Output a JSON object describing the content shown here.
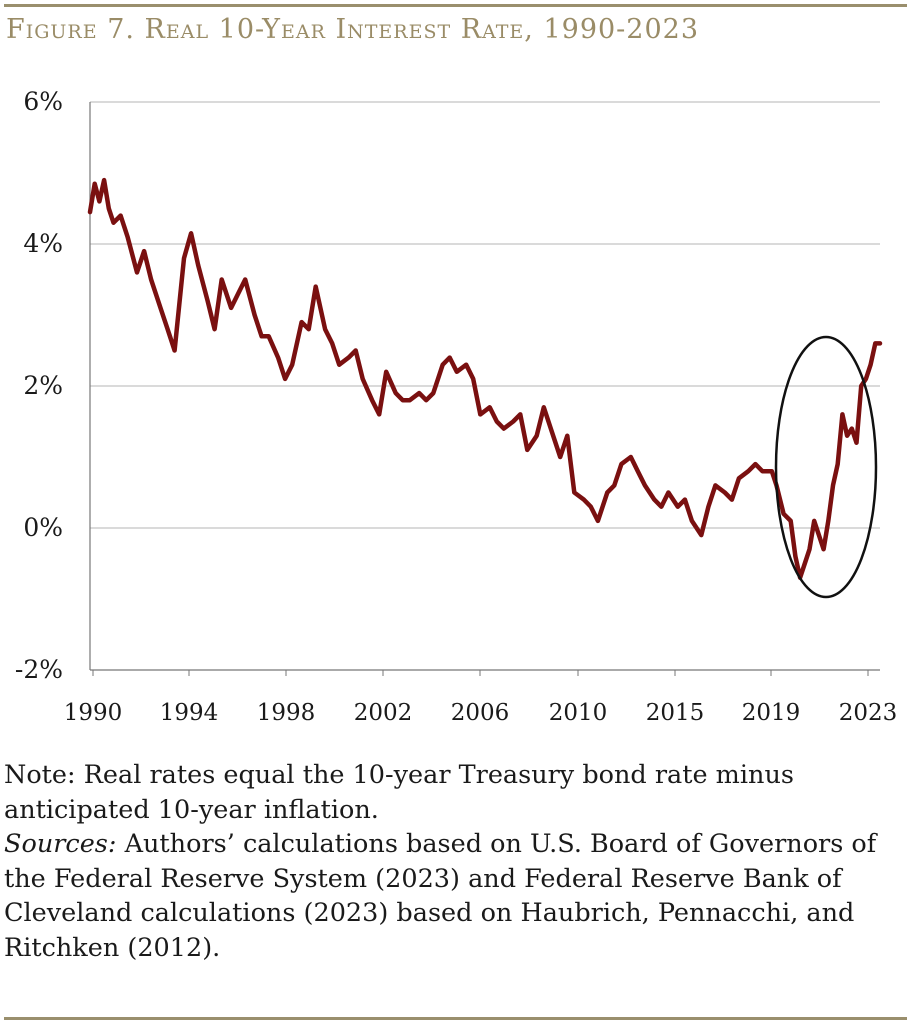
{
  "figure": {
    "title": "Figure 7. Real 10-Year Interest Rate, 1990-2023"
  },
  "chart_data": {
    "type": "line",
    "title": "Figure 7. Real 10-Year Interest Rate, 1990-2023",
    "xlabel": "",
    "ylabel": "",
    "ylim": [
      -2,
      6
    ],
    "yticks": [
      "-2%",
      "0%",
      "2%",
      "4%",
      "6%"
    ],
    "xticks": [
      "1990",
      "1994",
      "1998",
      "2002",
      "2006",
      "2010",
      "2015",
      "2019",
      "2023"
    ],
    "grid": "horizontal",
    "line_color": "#7a1010",
    "annotation": "ellipse highlighting 2019-2023 dip below 0% and rebound",
    "series": [
      {
        "x": [
          1990.0,
          1990.2,
          1990.4,
          1990.6,
          1990.8,
          1991.0,
          1991.3,
          1991.6,
          1992.0,
          1992.3,
          1992.6,
          1993.0,
          1993.3,
          1993.6,
          1994.0,
          1994.3,
          1994.6,
          1995.0,
          1995.3,
          1995.6,
          1996.0,
          1996.3,
          1996.6,
          1997.0,
          1997.3,
          1997.6,
          1998.0,
          1998.3,
          1998.6,
          1999.0,
          1999.3,
          1999.6,
          2000.0,
          2000.3,
          2000.6,
          2001.0,
          2001.3,
          2001.6,
          2002.0,
          2002.3,
          2002.6,
          2003.0,
          2003.3,
          2003.6,
          2004.0,
          2004.3,
          2004.6,
          2005.0,
          2005.3,
          2005.6,
          2006.0,
          2006.3,
          2006.6,
          2007.0,
          2007.3,
          2007.6,
          2008.0,
          2008.3,
          2008.6,
          2009.0,
          2009.3,
          2009.6,
          2010.0,
          2010.3,
          2010.6,
          2011.0,
          2011.3,
          2011.6,
          2012.0,
          2012.3,
          2012.6,
          2013.0,
          2013.3,
          2013.6,
          2014.0,
          2014.3,
          2014.6,
          2015.0,
          2015.3,
          2015.6,
          2016.0,
          2016.3,
          2016.6,
          2017.0,
          2017.3,
          2017.6,
          2018.0,
          2018.3,
          2018.6,
          2019.0,
          2019.2,
          2019.5,
          2019.8,
          2020.0,
          2020.2,
          2020.4,
          2020.6,
          2020.8,
          2021.0,
          2021.2,
          2021.4,
          2021.6,
          2021.8,
          2022.0,
          2022.2,
          2022.4,
          2022.6,
          2022.8,
          2023.0,
          2023.2,
          2023.4,
          2023.6
        ],
        "values": [
          4.45,
          4.85,
          4.6,
          4.9,
          4.5,
          4.3,
          4.4,
          4.1,
          3.6,
          3.9,
          3.5,
          3.1,
          2.8,
          2.5,
          3.8,
          4.15,
          3.7,
          3.2,
          2.8,
          3.5,
          3.1,
          3.3,
          3.5,
          3.0,
          2.7,
          2.7,
          2.4,
          2.1,
          2.3,
          2.9,
          2.8,
          3.4,
          2.8,
          2.6,
          2.3,
          2.4,
          2.5,
          2.1,
          1.8,
          1.6,
          2.2,
          1.9,
          1.8,
          1.8,
          1.9,
          1.8,
          1.9,
          2.3,
          2.4,
          2.2,
          2.3,
          2.1,
          1.6,
          1.7,
          1.5,
          1.4,
          1.5,
          1.6,
          1.1,
          1.3,
          1.7,
          1.4,
          1.0,
          1.3,
          0.5,
          0.4,
          0.3,
          0.1,
          0.5,
          0.6,
          0.9,
          1.0,
          0.8,
          0.6,
          0.4,
          0.3,
          0.5,
          0.3,
          0.4,
          0.1,
          -0.1,
          0.3,
          0.6,
          0.5,
          0.4,
          0.7,
          0.8,
          0.9,
          0.8,
          0.8,
          0.6,
          0.2,
          0.1,
          -0.4,
          -0.7,
          -0.5,
          -0.3,
          0.1,
          -0.1,
          -0.3,
          0.1,
          0.6,
          0.9,
          1.6,
          1.3,
          1.4,
          1.2,
          2.0,
          2.1,
          2.3,
          2.6,
          2.6
        ]
      }
    ]
  },
  "note": {
    "label": "Note:",
    "text": " Real rates equal the 10-year Treasury bond rate minus anticipated 10-year inflation."
  },
  "sources": {
    "label": "Sources:",
    "text": " Authors’ calculations based on U.S. Board of Governors of the Federal Reserve System (2023) and Federal Reserve Bank of Cleveland calculations (2023) based on Haubrich, Pennacchi, and Ritchken (2012)."
  }
}
